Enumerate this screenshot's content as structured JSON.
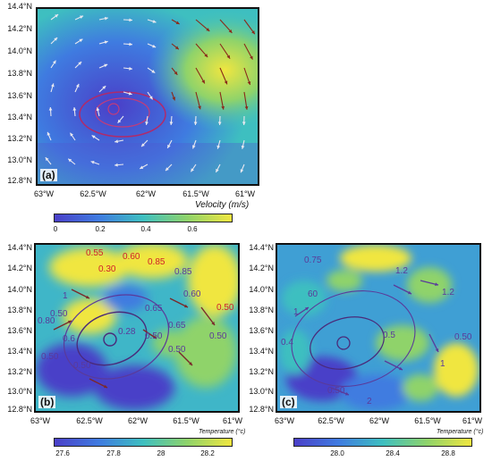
{
  "panels": {
    "a": {
      "label": "(a)",
      "lat_ticks": [
        "14.4°N",
        "14.2°N",
        "14.0°N",
        "13.8°N",
        "13.6°N",
        "13.4°N",
        "13.2°N",
        "13.0°N",
        "12.8°N"
      ],
      "lon_ticks": [
        "63°W",
        "62.5°W",
        "62°W",
        "61.5°W",
        "61°W"
      ],
      "colorbar": {
        "title": "Velocity (m/s)",
        "ticks": [
          "0",
          "0.2",
          "0.4",
          "0.6"
        ],
        "colors": [
          "#4a3fc8",
          "#3f7be0",
          "#3ebfc0",
          "#8fd36a",
          "#f0e640"
        ]
      }
    },
    "b": {
      "label": "(b)",
      "lat_ticks": [
        "14.4°N",
        "14.2°N",
        "14.0°N",
        "13.8°N",
        "13.6°N",
        "13.4°N",
        "13.2°N",
        "13.0°N",
        "12.8°N"
      ],
      "lon_ticks": [
        "63°W",
        "62.5°W",
        "62°W",
        "61.5°W",
        "61°W"
      ],
      "contour_labels": [
        {
          "text": "0.55",
          "color": "#d0202a"
        },
        {
          "text": "0.60",
          "color": "#d0202a"
        },
        {
          "text": "0.85",
          "color": "#d0202a"
        },
        {
          "text": "0.30",
          "color": "#d0202a"
        },
        {
          "text": "0.85",
          "color": "#5a3a9a"
        },
        {
          "text": "1",
          "color": "#5a3a9a"
        },
        {
          "text": "0.60",
          "color": "#5a3a9a"
        },
        {
          "text": "0.50",
          "color": "#d0202a"
        },
        {
          "text": "0.80",
          "color": "#5a3a9a"
        },
        {
          "text": "0.50",
          "color": "#5a3a9a"
        },
        {
          "text": "0.65",
          "color": "#5a3a9a"
        },
        {
          "text": "0.28",
          "color": "#5a3a9a"
        },
        {
          "text": "0.6",
          "color": "#5a3a9a"
        },
        {
          "text": "0.65",
          "color": "#5a3a9a"
        },
        {
          "text": "0.50",
          "color": "#5a3a9a"
        },
        {
          "text": "0.50",
          "color": "#5a3a9a"
        },
        {
          "text": "0.50",
          "color": "#5a3a9a"
        },
        {
          "text": "0.50",
          "color": "#5a3a9a"
        },
        {
          "text": "0.50",
          "color": "#5a3a9a"
        }
      ],
      "colorbar": {
        "title": "Temperature (°c)",
        "ticks": [
          "27.6",
          "27.8",
          "28",
          "28.2"
        ],
        "colors": [
          "#4a3fc8",
          "#3f7be0",
          "#3ebfc0",
          "#8fd36a",
          "#f0e640"
        ]
      }
    },
    "c": {
      "label": "(c)",
      "lat_ticks": [
        "14.4°N",
        "14.2°N",
        "14.0°N",
        "13.8°N",
        "13.6°N",
        "13.4°N",
        "13.2°N",
        "13.0°N",
        "12.8°N"
      ],
      "lon_ticks": [
        "63°W",
        "62.5°W",
        "62°W",
        "61.5°W",
        "61°W"
      ],
      "contour_labels": [
        {
          "text": "0.75",
          "color": "#5a3a9a"
        },
        {
          "text": "1.2",
          "color": "#5a3a9a"
        },
        {
          "text": "60",
          "color": "#5a3a9a"
        },
        {
          "text": "1.2",
          "color": "#5a3a9a"
        },
        {
          "text": "1",
          "color": "#5a3a9a"
        },
        {
          "text": "0.5",
          "color": "#5a3a9a"
        },
        {
          "text": "0.50",
          "color": "#5a3a9a"
        },
        {
          "text": "0.4",
          "color": "#5a3a9a"
        },
        {
          "text": "1",
          "color": "#5a3a9a"
        },
        {
          "text": "0.50",
          "color": "#5a3a9a"
        },
        {
          "text": "2",
          "color": "#5a3a9a"
        }
      ],
      "colorbar": {
        "title": "Temperature (°c)",
        "ticks": [
          "28.0",
          "28.4",
          "28.8"
        ],
        "colors": [
          "#4a3fc8",
          "#3f7be0",
          "#3ebfc0",
          "#8fd36a",
          "#f0e640"
        ]
      }
    }
  }
}
